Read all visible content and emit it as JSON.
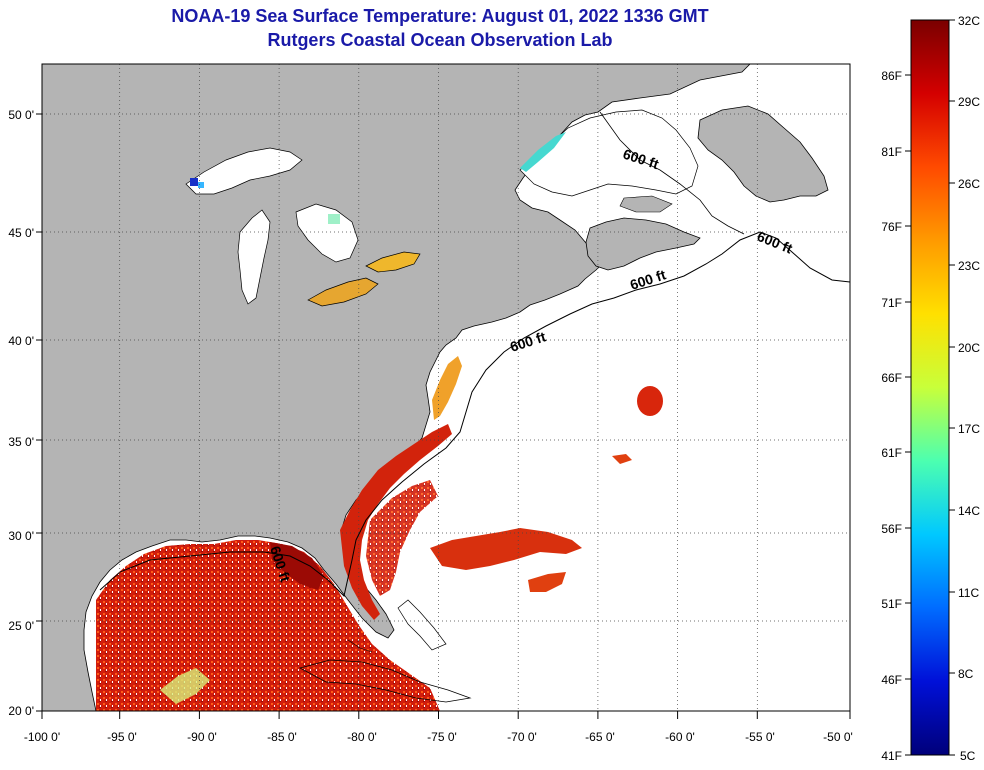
{
  "header": {
    "title": "NOAA-19 Sea Surface Temperature:  August 01, 2022 1336 GMT",
    "subtitle": "Rutgers Coastal Ocean Observation Lab"
  },
  "map": {
    "lon_ticks": [
      "-100 0'",
      "-95 0'",
      "-90 0'",
      "-85 0'",
      "-80 0'",
      "-75 0'",
      "-70 0'",
      "-65 0'",
      "-60 0'",
      "-55 0'",
      "-50 0'"
    ],
    "lat_ticks": [
      "20 0'",
      "25 0'",
      "30 0'",
      "35 0'",
      "40 0'",
      "45 0'",
      "50 0'"
    ],
    "isobath_labels": [
      "600 ft",
      "600 ft",
      "600 ft",
      "600 ft",
      "600 ft"
    ],
    "colors": {
      "land": "#b4b4b4",
      "ocean": "#ffffff",
      "coastline": "#000000"
    }
  },
  "colorbar": {
    "celsius": [
      "32C",
      "29C",
      "26C",
      "23C",
      "20C",
      "17C",
      "14C",
      "11C",
      "8C",
      "5C"
    ],
    "fahrenheit": [
      "86F",
      "81F",
      "76F",
      "71F",
      "66F",
      "61F",
      "56F",
      "51F",
      "46F",
      "41F"
    ],
    "gradient": [
      "#7a0000",
      "#d40000",
      "#ff4a00",
      "#ff9a00",
      "#ffe000",
      "#c8ff3a",
      "#4cffb0",
      "#00c8ff",
      "#006cff",
      "#0010d8",
      "#00007a"
    ]
  }
}
